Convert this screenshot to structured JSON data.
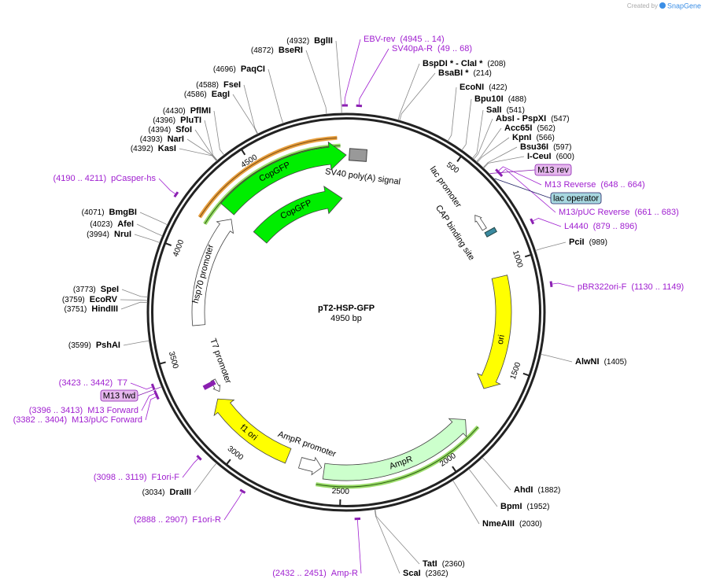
{
  "header": {
    "credit": "Created by",
    "brand": "SnapGene"
  },
  "plasmid": {
    "name": "pT2-HSP-GFP",
    "size": "4950 bp"
  },
  "ticks": [
    500,
    1000,
    1500,
    2000,
    2500,
    3000,
    3500,
    4000,
    4500
  ],
  "sites": [
    {
      "name": "BglII",
      "position": "(4932)"
    },
    {
      "name": "BseRI",
      "position": "(4872)"
    },
    {
      "name": "PaqCI",
      "position": "(4696)"
    },
    {
      "name": "FseI",
      "position": "(4588)"
    },
    {
      "name": "EagI",
      "position": "(4586)"
    },
    {
      "name": "PflMI",
      "position": "(4430)"
    },
    {
      "name": "PluTI",
      "position": "(4396)"
    },
    {
      "name": "SfoI",
      "position": "(4394)"
    },
    {
      "name": "NarI",
      "position": "(4393)"
    },
    {
      "name": "KasI",
      "position": "(4392)"
    },
    {
      "name": "BmgBI",
      "position": "(4071)"
    },
    {
      "name": "AfeI",
      "position": "(4023)"
    },
    {
      "name": "NruI",
      "position": "(3994)"
    },
    {
      "name": "SpeI",
      "position": "(3773)"
    },
    {
      "name": "EcoRV",
      "position": "(3759)"
    },
    {
      "name": "HindIII",
      "position": "(3751)"
    },
    {
      "name": "PshAI",
      "position": "(3599)"
    },
    {
      "name": "DraIII",
      "position": "(3034)"
    },
    {
      "name": "BspDI * - ClaI *",
      "position": "(208)"
    },
    {
      "name": "BsaBI *",
      "position": "(214)"
    },
    {
      "name": "EcoNI",
      "position": "(422)"
    },
    {
      "name": "Bpu10I",
      "position": "(488)"
    },
    {
      "name": "SalI",
      "position": "(541)"
    },
    {
      "name": "AbsI - PspXI",
      "position": "(547)"
    },
    {
      "name": "Acc65I",
      "position": "(562)"
    },
    {
      "name": "KpnI",
      "position": "(566)"
    },
    {
      "name": "Bsu36I",
      "position": "(597)"
    },
    {
      "name": "I-CeuI",
      "position": "(600)"
    },
    {
      "name": "PciI",
      "position": "(989)"
    },
    {
      "name": "AlwNI",
      "position": "(1405)"
    },
    {
      "name": "AhdI",
      "position": "(1882)"
    },
    {
      "name": "BpmI",
      "position": "(1952)"
    },
    {
      "name": "NmeAIII",
      "position": "(2030)"
    },
    {
      "name": "TatI",
      "position": "(2360)"
    },
    {
      "name": "ScaI",
      "position": "(2362)"
    }
  ],
  "primers": [
    {
      "name": "EBV-rev",
      "range": "(4945 .. 14)"
    },
    {
      "name": "SV40pA-R",
      "range": "(49 .. 68)"
    },
    {
      "name": "M13 Reverse",
      "range": "(648 .. 664)"
    },
    {
      "name": "M13/pUC Reverse",
      "range": "(661 .. 683)"
    },
    {
      "name": "L4440",
      "range": "(879 .. 896)"
    },
    {
      "name": "pBR322ori-F",
      "range": "(1130 .. 1149)"
    },
    {
      "name": "Amp-R",
      "range": "(2432 .. 2451)"
    },
    {
      "name": "F1ori-R",
      "range": "(2888 .. 2907)"
    },
    {
      "name": "F1ori-F",
      "range": "(3098 .. 3119)"
    },
    {
      "name": "M13/pUC Forward",
      "range": "(3382 .. 3404)"
    },
    {
      "name": "M13 Forward",
      "range": "(3396 .. 3413)"
    },
    {
      "name": "T7",
      "range": "(3423 .. 3442)"
    },
    {
      "name": "pCasper-hs",
      "range": "(4190 .. 4211)"
    }
  ],
  "boxed": [
    "M13 rev",
    "lac operator",
    "M13 fwd"
  ],
  "features": [
    "CopGFP",
    "CopGFP",
    "SV40 poly(A) signal",
    "lac promoter",
    "CAP binding site",
    "ori",
    "AmpR",
    "AmpR promoter",
    "f1 ori",
    "T7 promoter",
    "hsp70 promoter"
  ]
}
